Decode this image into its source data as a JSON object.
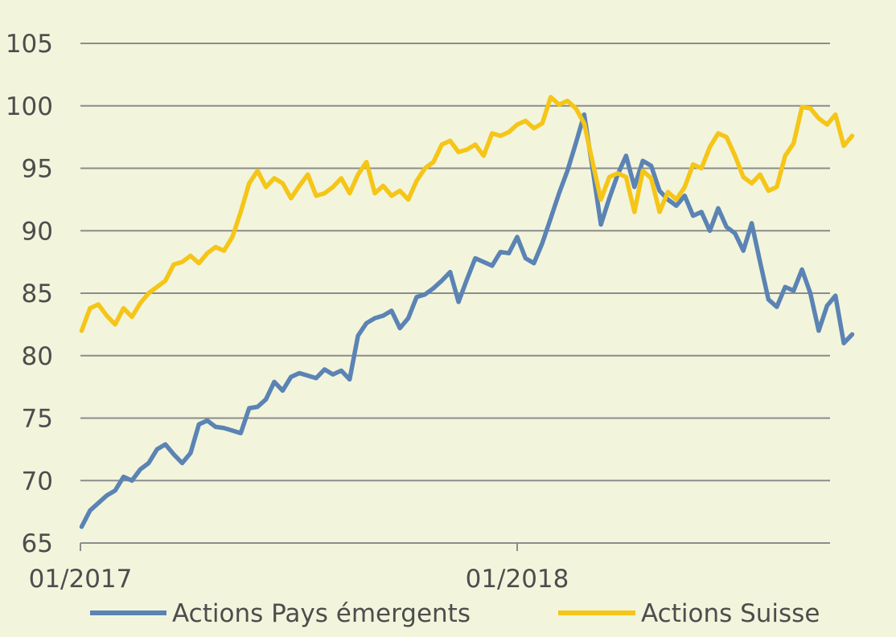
{
  "chart_data": {
    "type": "line",
    "title": "",
    "xlabel": "",
    "ylabel": "",
    "ylim": [
      65,
      105
    ],
    "y_ticks": [
      "65",
      "70",
      "75",
      "80",
      "85",
      "90",
      "95",
      "100",
      "105"
    ],
    "x_ticks": [
      {
        "label": "01/2017",
        "value": "2017-01"
      },
      {
        "label": "01/2018",
        "value": "2018-01"
      }
    ],
    "x_range": [
      "2017-01",
      "2018-09"
    ],
    "grid": "horizontal",
    "legend_position": "bottom",
    "colors": {
      "background": "#f2f5dc",
      "grid": "#8c8c8c",
      "text": "#4d4d4d"
    },
    "series": [
      {
        "name": "Actions Pays émergents",
        "color": "#5b83b4",
        "points": [
          [
            "2017-01-02",
            66.3
          ],
          [
            "2017-01-09",
            67.6
          ],
          [
            "2017-01-16",
            68.2
          ],
          [
            "2017-01-23",
            68.8
          ],
          [
            "2017-01-30",
            69.2
          ],
          [
            "2017-02-06",
            70.3
          ],
          [
            "2017-02-13",
            70.0
          ],
          [
            "2017-02-20",
            70.9
          ],
          [
            "2017-02-27",
            71.4
          ],
          [
            "2017-03-06",
            72.5
          ],
          [
            "2017-03-13",
            72.9
          ],
          [
            "2017-03-20",
            72.1
          ],
          [
            "2017-03-27",
            71.4
          ],
          [
            "2017-04-03",
            72.2
          ],
          [
            "2017-04-10",
            74.5
          ],
          [
            "2017-04-17",
            74.8
          ],
          [
            "2017-04-24",
            74.3
          ],
          [
            "2017-05-01",
            74.2
          ],
          [
            "2017-05-08",
            74.0
          ],
          [
            "2017-05-15",
            73.8
          ],
          [
            "2017-05-22",
            75.8
          ],
          [
            "2017-05-29",
            75.9
          ],
          [
            "2017-06-05",
            76.5
          ],
          [
            "2017-06-12",
            77.9
          ],
          [
            "2017-06-19",
            77.2
          ],
          [
            "2017-06-26",
            78.3
          ],
          [
            "2017-07-03",
            78.6
          ],
          [
            "2017-07-10",
            78.4
          ],
          [
            "2017-07-17",
            78.2
          ],
          [
            "2017-07-24",
            78.9
          ],
          [
            "2017-07-31",
            78.5
          ],
          [
            "2017-08-07",
            78.8
          ],
          [
            "2017-08-14",
            78.1
          ],
          [
            "2017-08-21",
            81.6
          ],
          [
            "2017-08-28",
            82.6
          ],
          [
            "2017-09-04",
            83.0
          ],
          [
            "2017-09-11",
            83.2
          ],
          [
            "2017-09-18",
            83.6
          ],
          [
            "2017-09-25",
            82.2
          ],
          [
            "2017-10-02",
            83.0
          ],
          [
            "2017-10-09",
            84.7
          ],
          [
            "2017-10-16",
            84.9
          ],
          [
            "2017-10-23",
            85.4
          ],
          [
            "2017-10-30",
            86.0
          ],
          [
            "2017-11-06",
            86.7
          ],
          [
            "2017-11-13",
            84.3
          ],
          [
            "2017-11-20",
            86.1
          ],
          [
            "2017-11-27",
            87.8
          ],
          [
            "2017-12-04",
            87.5
          ],
          [
            "2017-12-11",
            87.2
          ],
          [
            "2017-12-18",
            88.3
          ],
          [
            "2017-12-25",
            88.2
          ],
          [
            "2018-01-01",
            89.5
          ],
          [
            "2018-01-08",
            87.8
          ],
          [
            "2018-01-15",
            87.4
          ],
          [
            "2018-01-22",
            89.0
          ],
          [
            "2018-01-29",
            91.0
          ],
          [
            "2018-02-05",
            93.0
          ],
          [
            "2018-02-12",
            94.8
          ],
          [
            "2018-02-19",
            97.0
          ],
          [
            "2018-02-26",
            99.3
          ],
          [
            "2018-03-05",
            95.0
          ],
          [
            "2018-03-12",
            90.5
          ],
          [
            "2018-03-19",
            92.6
          ],
          [
            "2018-03-26",
            94.5
          ],
          [
            "2018-04-02",
            96.0
          ],
          [
            "2018-04-09",
            93.5
          ],
          [
            "2018-04-16",
            95.6
          ],
          [
            "2018-04-23",
            95.2
          ],
          [
            "2018-04-30",
            93.2
          ],
          [
            "2018-05-07",
            92.5
          ],
          [
            "2018-05-14",
            92.0
          ],
          [
            "2018-05-21",
            92.8
          ],
          [
            "2018-05-28",
            91.2
          ],
          [
            "2018-06-04",
            91.5
          ],
          [
            "2018-06-11",
            90.0
          ],
          [
            "2018-06-18",
            91.8
          ],
          [
            "2018-06-25",
            90.3
          ],
          [
            "2018-07-02",
            89.8
          ],
          [
            "2018-07-09",
            88.4
          ],
          [
            "2018-07-16",
            90.6
          ],
          [
            "2018-07-23",
            87.5
          ],
          [
            "2018-07-30",
            84.5
          ],
          [
            "2018-08-06",
            83.9
          ],
          [
            "2018-08-13",
            85.5
          ],
          [
            "2018-08-20",
            85.2
          ],
          [
            "2018-08-27",
            86.9
          ],
          [
            "2018-09-03",
            85.0
          ],
          [
            "2018-09-10",
            82.0
          ],
          [
            "2018-09-17",
            84.0
          ],
          [
            "2018-09-24",
            84.8
          ],
          [
            "2018-10-01",
            81.0
          ],
          [
            "2018-10-08",
            81.7
          ]
        ]
      },
      {
        "name": "Actions Suisse",
        "color": "#f5c518",
        "points": [
          [
            "2017-01-02",
            82.0
          ],
          [
            "2017-01-09",
            83.8
          ],
          [
            "2017-01-16",
            84.1
          ],
          [
            "2017-01-23",
            83.2
          ],
          [
            "2017-01-30",
            82.5
          ],
          [
            "2017-02-06",
            83.8
          ],
          [
            "2017-02-13",
            83.1
          ],
          [
            "2017-02-20",
            84.2
          ],
          [
            "2017-02-27",
            85.0
          ],
          [
            "2017-03-06",
            85.5
          ],
          [
            "2017-03-13",
            86.0
          ],
          [
            "2017-03-20",
            87.3
          ],
          [
            "2017-03-27",
            87.5
          ],
          [
            "2017-04-03",
            88.0
          ],
          [
            "2017-04-10",
            87.4
          ],
          [
            "2017-04-17",
            88.2
          ],
          [
            "2017-04-24",
            88.7
          ],
          [
            "2017-05-01",
            88.4
          ],
          [
            "2017-05-08",
            89.5
          ],
          [
            "2017-05-15",
            91.5
          ],
          [
            "2017-05-22",
            93.8
          ],
          [
            "2017-05-29",
            94.8
          ],
          [
            "2017-06-05",
            93.5
          ],
          [
            "2017-06-12",
            94.2
          ],
          [
            "2017-06-19",
            93.8
          ],
          [
            "2017-06-26",
            92.6
          ],
          [
            "2017-07-03",
            93.6
          ],
          [
            "2017-07-10",
            94.5
          ],
          [
            "2017-07-17",
            92.8
          ],
          [
            "2017-07-24",
            93.0
          ],
          [
            "2017-07-31",
            93.5
          ],
          [
            "2017-08-07",
            94.2
          ],
          [
            "2017-08-14",
            93.0
          ],
          [
            "2017-08-21",
            94.5
          ],
          [
            "2017-08-28",
            95.5
          ],
          [
            "2017-09-04",
            93.0
          ],
          [
            "2017-09-11",
            93.6
          ],
          [
            "2017-09-18",
            92.8
          ],
          [
            "2017-09-25",
            93.2
          ],
          [
            "2017-10-02",
            92.5
          ],
          [
            "2017-10-09",
            94.0
          ],
          [
            "2017-10-16",
            95.0
          ],
          [
            "2017-10-23",
            95.5
          ],
          [
            "2017-10-30",
            96.9
          ],
          [
            "2017-11-06",
            97.2
          ],
          [
            "2017-11-13",
            96.3
          ],
          [
            "2017-11-20",
            96.5
          ],
          [
            "2017-11-27",
            96.9
          ],
          [
            "2017-12-04",
            96.0
          ],
          [
            "2017-12-11",
            97.8
          ],
          [
            "2017-12-18",
            97.6
          ],
          [
            "2017-12-25",
            97.9
          ],
          [
            "2018-01-01",
            98.5
          ],
          [
            "2018-01-08",
            98.8
          ],
          [
            "2018-01-15",
            98.2
          ],
          [
            "2018-01-22",
            98.6
          ],
          [
            "2018-01-29",
            100.7
          ],
          [
            "2018-02-05",
            100.1
          ],
          [
            "2018-02-12",
            100.4
          ],
          [
            "2018-02-19",
            99.8
          ],
          [
            "2018-02-26",
            98.6
          ],
          [
            "2018-03-05",
            95.5
          ],
          [
            "2018-03-12",
            92.5
          ],
          [
            "2018-03-19",
            94.3
          ],
          [
            "2018-03-26",
            94.6
          ],
          [
            "2018-04-02",
            94.3
          ],
          [
            "2018-04-09",
            91.5
          ],
          [
            "2018-04-16",
            94.8
          ],
          [
            "2018-04-23",
            94.2
          ],
          [
            "2018-04-30",
            91.5
          ],
          [
            "2018-05-07",
            93.1
          ],
          [
            "2018-05-14",
            92.5
          ],
          [
            "2018-05-21",
            93.5
          ],
          [
            "2018-05-28",
            95.3
          ],
          [
            "2018-06-04",
            95.0
          ],
          [
            "2018-06-11",
            96.7
          ],
          [
            "2018-06-18",
            97.8
          ],
          [
            "2018-06-25",
            97.5
          ],
          [
            "2018-07-02",
            96.0
          ],
          [
            "2018-07-09",
            94.3
          ],
          [
            "2018-07-16",
            93.8
          ],
          [
            "2018-07-23",
            94.5
          ],
          [
            "2018-07-30",
            93.2
          ],
          [
            "2018-08-06",
            93.5
          ],
          [
            "2018-08-13",
            96.0
          ],
          [
            "2018-08-20",
            97.0
          ],
          [
            "2018-08-27",
            99.9
          ],
          [
            "2018-09-03",
            99.8
          ],
          [
            "2018-09-10",
            99.0
          ],
          [
            "2018-09-17",
            98.5
          ],
          [
            "2018-09-24",
            99.3
          ],
          [
            "2018-10-01",
            96.8
          ],
          [
            "2018-10-08",
            97.6
          ]
        ]
      }
    ]
  }
}
